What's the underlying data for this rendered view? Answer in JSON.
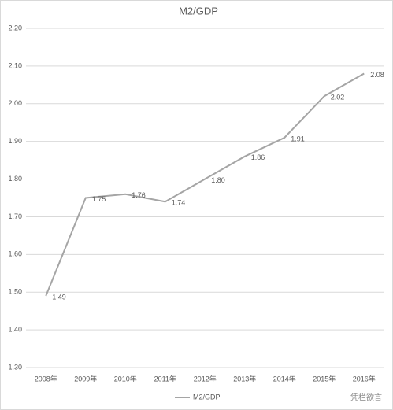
{
  "chart_data": {
    "type": "line",
    "title": "M2/GDP",
    "categories": [
      "2008年",
      "2009年",
      "2010年",
      "2011年",
      "2012年",
      "2013年",
      "2014年",
      "2015年",
      "2016年"
    ],
    "series": [
      {
        "name": "M2/GDP",
        "color": "#a5a5a5",
        "values": [
          1.49,
          1.75,
          1.76,
          1.74,
          1.8,
          1.86,
          1.91,
          2.02,
          2.08
        ],
        "value_labels": [
          "1.49",
          "1.75",
          "1.76",
          "1.74",
          "1.80",
          "1.86",
          "1.91",
          "2.02",
          "2.08"
        ]
      }
    ],
    "ylim": [
      1.3,
      2.2
    ],
    "yticks": [
      {
        "value": 1.3,
        "label": "1.30"
      },
      {
        "value": 1.4,
        "label": "1.40"
      },
      {
        "value": 1.5,
        "label": "1.50"
      },
      {
        "value": 1.6,
        "label": "1.60"
      },
      {
        "value": 1.7,
        "label": "1.70"
      },
      {
        "value": 1.8,
        "label": "1.80"
      },
      {
        "value": 1.9,
        "label": "1.90"
      },
      {
        "value": 2.0,
        "label": "2.00"
      },
      {
        "value": 2.1,
        "label": "2.10"
      },
      {
        "value": 2.2,
        "label": "2.20"
      }
    ],
    "grid": true,
    "legend": "bottom",
    "watermark": "凭栏欲言"
  }
}
